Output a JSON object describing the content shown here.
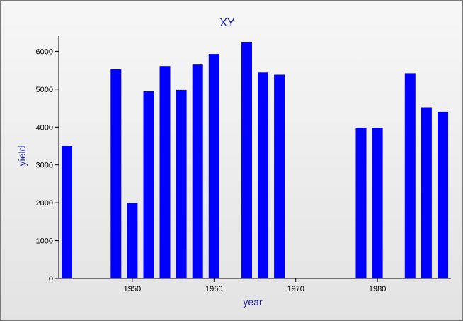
{
  "chart_data": {
    "type": "bar",
    "title": "XY",
    "xlabel": "year",
    "ylabel": "yield",
    "x_ticks": [
      1950,
      1960,
      1970,
      1980
    ],
    "y_ticks": [
      0,
      1000,
      2000,
      3000,
      4000,
      5000,
      6000
    ],
    "xlim": [
      1941,
      1989
    ],
    "ylim": [
      0,
      6400
    ],
    "bar_color": "#0000ff",
    "grid": false,
    "x": [
      1942,
      1948,
      1950,
      1952,
      1954,
      1956,
      1958,
      1960,
      1964,
      1966,
      1968,
      1978,
      1980,
      1984,
      1986,
      1988
    ],
    "values": [
      3500,
      5520,
      1990,
      4940,
      5610,
      4980,
      5650,
      5930,
      6250,
      5440,
      5380,
      3980,
      3980,
      5420,
      4520,
      4400
    ]
  }
}
